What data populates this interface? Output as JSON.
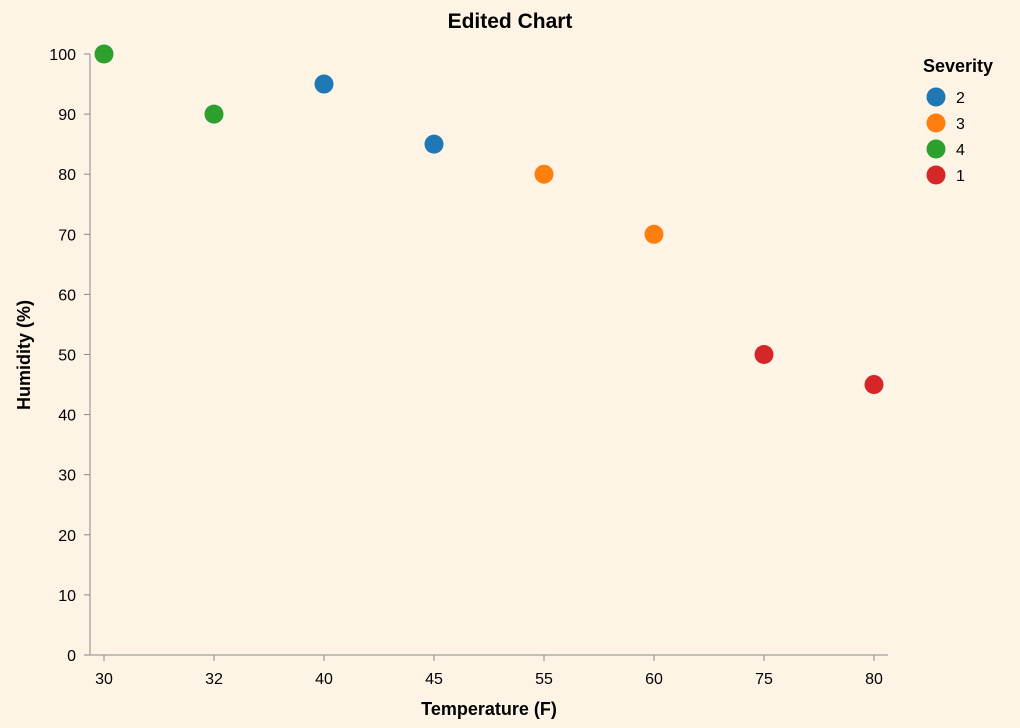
{
  "chart_data": {
    "type": "scatter",
    "title": "Edited Chart",
    "xlabel": "Temperature (F)",
    "ylabel": "Humidity (%)",
    "x_scale": "ordinal",
    "x_categories": [
      "30",
      "32",
      "40",
      "45",
      "55",
      "60",
      "75",
      "80"
    ],
    "ylim": [
      0,
      100
    ],
    "y_ticks": [
      0,
      10,
      20,
      30,
      40,
      50,
      60,
      70,
      80,
      90,
      100
    ],
    "grid": false,
    "legend": {
      "title": "Severity",
      "placement": "top-right",
      "entries": [
        {
          "label": "2",
          "color": "#1f77b4"
        },
        {
          "label": "3",
          "color": "#ff7f0e"
        },
        {
          "label": "4",
          "color": "#2ca02c"
        },
        {
          "label": "1",
          "color": "#d62728"
        }
      ]
    },
    "points": [
      {
        "x": "30",
        "y": 100,
        "severity": "4"
      },
      {
        "x": "32",
        "y": 90,
        "severity": "4"
      },
      {
        "x": "40",
        "y": 95,
        "severity": "2"
      },
      {
        "x": "45",
        "y": 85,
        "severity": "2"
      },
      {
        "x": "55",
        "y": 80,
        "severity": "3"
      },
      {
        "x": "60",
        "y": 70,
        "severity": "3"
      },
      {
        "x": "75",
        "y": 50,
        "severity": "1"
      },
      {
        "x": "80",
        "y": 45,
        "severity": "1"
      }
    ],
    "background_color": "#fef4e6",
    "axis_color": "#888888"
  }
}
